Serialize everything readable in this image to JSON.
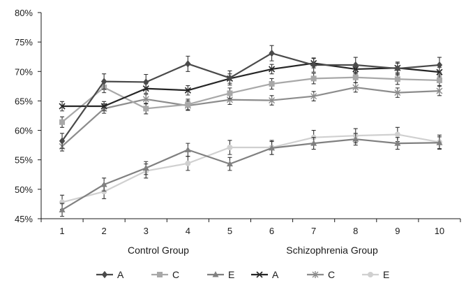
{
  "chart_data": {
    "type": "line",
    "title": "",
    "xlabel": "",
    "ylabel": "",
    "categories": [
      "1",
      "2",
      "3",
      "4",
      "5",
      "6",
      "7",
      "8",
      "9",
      "10"
    ],
    "ylim": [
      45,
      80
    ],
    "y_ticks": [
      45,
      50,
      55,
      60,
      65,
      70,
      75,
      80
    ],
    "y_tick_format": "percent",
    "grid": false,
    "group_labels": [
      "Control Group",
      "Schizophrenia Group"
    ],
    "legend_position": "bottom",
    "series": [
      {
        "name": "A",
        "group": "Control Group",
        "marker": "diamond",
        "color": "#4a4a4a",
        "values": [
          58.2,
          68.3,
          68.2,
          71.3,
          68.9,
          73.1,
          71.1,
          71.1,
          70.5,
          71.1
        ],
        "error": [
          1.3,
          1.3,
          1.3,
          1.3,
          1.2,
          1.3,
          1.2,
          1.3,
          1.1,
          1.3
        ]
      },
      {
        "name": "C",
        "group": "Control Group",
        "marker": "square",
        "color": "#a8a8a8",
        "values": [
          61.4,
          67.3,
          63.7,
          64.4,
          66.3,
          67.9,
          68.8,
          69.0,
          68.7,
          68.5
        ],
        "error": [
          0.9,
          0.9,
          0.9,
          0.9,
          0.9,
          0.9,
          0.9,
          0.9,
          0.9,
          0.9
        ]
      },
      {
        "name": "E",
        "group": "Control Group",
        "marker": "triangle",
        "color": "#808080",
        "values": [
          46.5,
          50.8,
          53.6,
          56.7,
          54.3,
          57.0,
          57.8,
          58.5,
          57.8,
          57.9
        ],
        "error": [
          1.1,
          1.1,
          1.1,
          1.1,
          1.1,
          1.1,
          1.0,
          1.0,
          1.0,
          1.0
        ]
      },
      {
        "name": "A",
        "group": "Schizophrenia Group",
        "marker": "x",
        "color": "#262626",
        "values": [
          64.1,
          64.1,
          67.1,
          66.8,
          68.8,
          70.4,
          71.4,
          70.4,
          70.6,
          69.9
        ],
        "error": [
          0.8,
          0.8,
          0.8,
          0.8,
          0.8,
          0.8,
          0.8,
          0.8,
          0.8,
          0.8
        ]
      },
      {
        "name": "C",
        "group": "Schizophrenia Group",
        "marker": "asterisk",
        "color": "#8c8c8c",
        "values": [
          57.3,
          63.7,
          65.3,
          64.2,
          65.2,
          65.1,
          65.8,
          67.3,
          66.4,
          66.7
        ],
        "error": [
          0.8,
          0.8,
          0.8,
          0.8,
          0.8,
          0.8,
          0.8,
          0.8,
          0.8,
          0.8
        ]
      },
      {
        "name": "E",
        "group": "Schizophrenia Group",
        "marker": "circle",
        "color": "#d0d0d0",
        "values": [
          47.8,
          49.6,
          53.1,
          54.4,
          57.1,
          57.1,
          58.8,
          59.1,
          59.3,
          58.0
        ],
        "error": [
          1.2,
          1.2,
          1.2,
          1.2,
          1.2,
          1.2,
          1.2,
          1.2,
          1.2,
          1.2
        ]
      }
    ]
  }
}
